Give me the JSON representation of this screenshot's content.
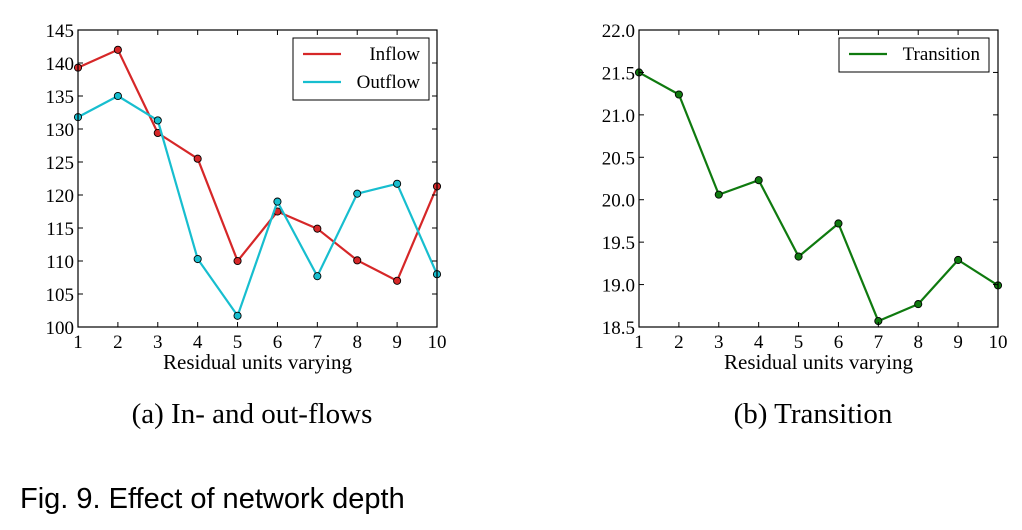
{
  "figure": {
    "caption": "Fig. 9. Effect of network depth"
  },
  "colors": {
    "inflow": "#d62728",
    "outflow": "#17becf",
    "transition": "#0f7a0f",
    "axes": "#000000"
  },
  "chart_data": [
    {
      "type": "line",
      "subcaption": "(a)  In- and out-flows",
      "xlabel": "Residual units varying",
      "ylabel": "",
      "x": [
        1,
        2,
        3,
        4,
        5,
        6,
        7,
        8,
        9,
        10
      ],
      "xlim": [
        1,
        10
      ],
      "ylim": [
        100,
        145
      ],
      "xticks": [
        "1",
        "2",
        "3",
        "4",
        "5",
        "6",
        "7",
        "8",
        "9",
        "10"
      ],
      "yticks": [
        "100",
        "105",
        "110",
        "115",
        "120",
        "125",
        "130",
        "135",
        "140",
        "145"
      ],
      "ytick_values": [
        100,
        105,
        110,
        115,
        120,
        125,
        130,
        135,
        140,
        145
      ],
      "grid": false,
      "legend_position": "top-right",
      "series": [
        {
          "name": "Inflow",
          "color_key": "inflow",
          "values": [
            139.3,
            142.0,
            129.4,
            125.5,
            110.0,
            117.5,
            114.9,
            110.1,
            107.0,
            121.3
          ]
        },
        {
          "name": "Outflow",
          "color_key": "outflow",
          "values": [
            131.8,
            135.0,
            131.3,
            110.3,
            101.7,
            119.0,
            107.7,
            120.2,
            121.7,
            108.0
          ]
        }
      ]
    },
    {
      "type": "line",
      "subcaption": "(b)  Transition",
      "xlabel": "Residual units varying",
      "ylabel": "",
      "x": [
        1,
        2,
        3,
        4,
        5,
        6,
        7,
        8,
        9,
        10
      ],
      "xlim": [
        1,
        10
      ],
      "ylim": [
        18.5,
        22.0
      ],
      "xticks": [
        "1",
        "2",
        "3",
        "4",
        "5",
        "6",
        "7",
        "8",
        "9",
        "10"
      ],
      "yticks": [
        "18.5",
        "19.0",
        "19.5",
        "20.0",
        "20.5",
        "21.0",
        "21.5",
        "22.0"
      ],
      "ytick_values": [
        18.5,
        19.0,
        19.5,
        20.0,
        20.5,
        21.0,
        21.5,
        22.0
      ],
      "grid": false,
      "legend_position": "top-right",
      "series": [
        {
          "name": "Transition",
          "color_key": "transition",
          "values": [
            21.5,
            21.24,
            20.06,
            20.23,
            19.33,
            19.72,
            18.57,
            18.77,
            19.29,
            18.99
          ]
        }
      ]
    }
  ]
}
